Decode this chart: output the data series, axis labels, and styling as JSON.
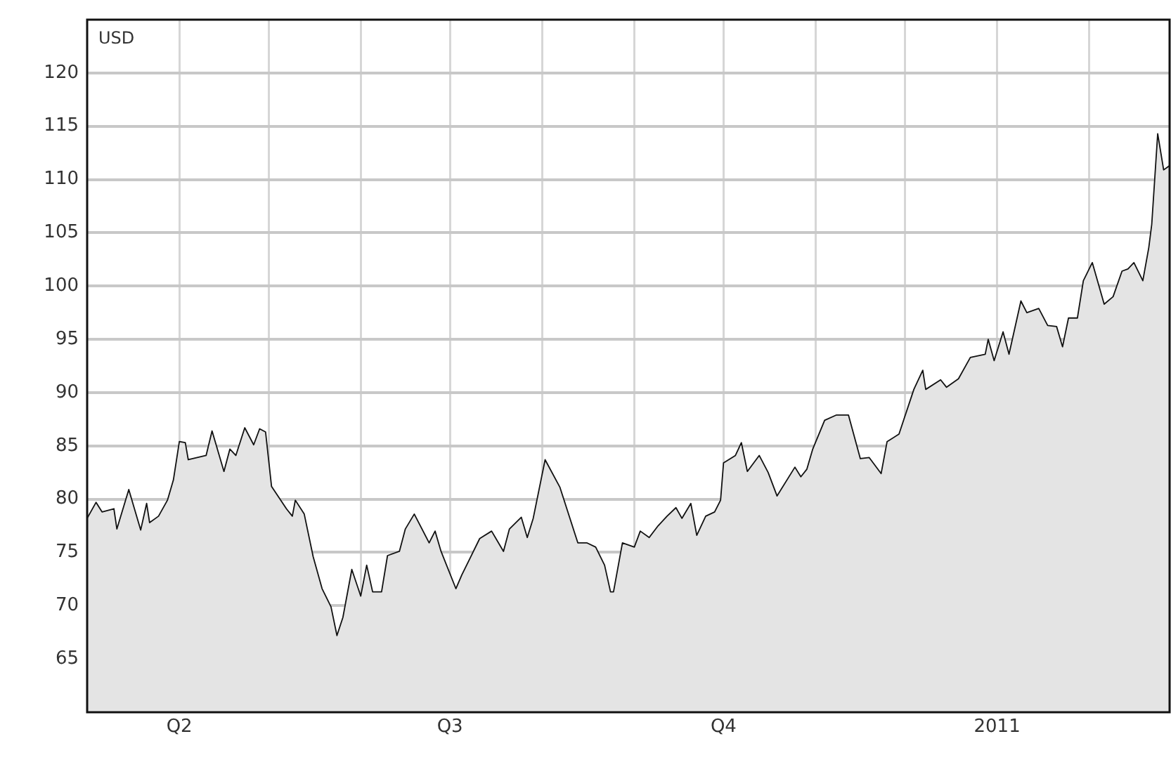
{
  "chart_data": {
    "type": "area",
    "annotations": [
      "USD"
    ],
    "x": [
      "2010-03-01",
      "2010-03-04",
      "2010-03-06",
      "2010-03-10",
      "2010-03-11",
      "2010-03-15",
      "2010-03-19",
      "2010-03-21",
      "2010-03-22",
      "2010-03-25",
      "2010-03-28",
      "2010-03-30",
      "2010-04-01",
      "2010-04-03",
      "2010-04-04",
      "2010-04-10",
      "2010-04-12",
      "2010-04-16",
      "2010-04-18",
      "2010-04-20",
      "2010-04-23",
      "2010-04-26",
      "2010-04-28",
      "2010-04-30",
      "2010-05-02",
      "2010-05-07",
      "2010-05-09",
      "2010-05-10",
      "2010-05-13",
      "2010-05-16",
      "2010-05-19",
      "2010-05-22",
      "2010-05-24",
      "2010-05-26",
      "2010-05-29",
      "2010-06-01",
      "2010-06-03",
      "2010-06-05",
      "2010-06-08",
      "2010-06-10",
      "2010-06-14",
      "2010-06-16",
      "2010-06-19",
      "2010-06-24",
      "2010-06-26",
      "2010-06-28",
      "2010-07-03",
      "2010-07-05",
      "2010-07-08",
      "2010-07-11",
      "2010-07-15",
      "2010-07-19",
      "2010-07-21",
      "2010-07-25",
      "2010-07-27",
      "2010-07-29",
      "2010-08-02",
      "2010-08-07",
      "2010-08-13",
      "2010-08-16",
      "2010-08-19",
      "2010-08-22",
      "2010-08-24",
      "2010-08-25",
      "2010-08-28",
      "2010-09-01",
      "2010-09-03",
      "2010-09-06",
      "2010-09-09",
      "2010-09-12",
      "2010-09-15",
      "2010-09-17",
      "2010-09-20",
      "2010-09-22",
      "2010-09-25",
      "2010-09-28",
      "2010-09-30",
      "2010-10-01",
      "2010-10-05",
      "2010-10-07",
      "2010-10-09",
      "2010-10-13",
      "2010-10-16",
      "2010-10-19",
      "2010-10-25",
      "2010-10-27",
      "2010-10-29",
      "2010-10-31",
      "2010-11-04",
      "2010-11-08",
      "2010-11-12",
      "2010-11-16",
      "2010-11-19",
      "2010-11-23",
      "2010-11-25",
      "2010-11-29",
      "2010-12-04",
      "2010-12-07",
      "2010-12-08",
      "2010-12-13",
      "2010-12-15",
      "2010-12-19",
      "2010-12-23",
      "2010-12-28",
      "2010-12-29",
      "2010-12-31",
      "2011-01-03",
      "2011-01-05",
      "2011-01-09",
      "2011-01-11",
      "2011-01-15",
      "2011-01-18",
      "2011-01-21",
      "2011-01-23",
      "2011-01-25",
      "2011-01-28",
      "2011-01-30",
      "2011-02-02",
      "2011-02-06",
      "2011-02-09",
      "2011-02-12",
      "2011-02-14",
      "2011-02-16",
      "2011-02-19",
      "2011-02-21",
      "2011-02-22",
      "2011-02-24",
      "2011-02-26",
      "2011-02-28"
    ],
    "series": [
      {
        "color": "#111111",
        "values": [
          78.2,
          79.7,
          78.8,
          79.1,
          77.2,
          80.9,
          77.1,
          79.6,
          77.8,
          78.4,
          79.9,
          81.8,
          85.4,
          85.3,
          83.7,
          84.1,
          86.4,
          82.6,
          84.7,
          84.1,
          86.7,
          85.1,
          86.6,
          86.3,
          81.2,
          79.1,
          78.4,
          79.9,
          78.6,
          74.6,
          71.6,
          69.9,
          67.2,
          68.9,
          73.4,
          70.9,
          73.8,
          71.3,
          71.3,
          74.7,
          75.1,
          77.2,
          78.6,
          75.9,
          77.0,
          75.1,
          71.6,
          72.9,
          74.6,
          76.3,
          77.0,
          75.1,
          77.2,
          78.3,
          76.4,
          78.2,
          83.7,
          81.1,
          75.9,
          75.9,
          75.5,
          73.8,
          71.3,
          71.3,
          75.9,
          75.5,
          77.0,
          76.4,
          77.5,
          78.4,
          79.2,
          78.2,
          79.6,
          76.6,
          78.4,
          78.8,
          79.9,
          83.4,
          84.1,
          85.3,
          82.6,
          84.1,
          82.5,
          80.3,
          83.0,
          82.1,
          82.8,
          84.7,
          87.4,
          87.9,
          87.9,
          83.8,
          83.9,
          82.4,
          85.4,
          86.1,
          90.3,
          92.1,
          90.3,
          91.2,
          90.5,
          91.3,
          93.3,
          93.6,
          95.0,
          93.0,
          95.7,
          93.6,
          98.6,
          97.5,
          97.9,
          96.3,
          96.2,
          94.3,
          97.0,
          97.0,
          100.5,
          102.2,
          98.3,
          99.0,
          101.4,
          101.6,
          102.2,
          100.5,
          103.6,
          105.8,
          114.3,
          110.9,
          111.3
        ]
      }
    ],
    "xlim": [
      "2010-03-01",
      "2011-02-28"
    ],
    "xticks": [
      {
        "value": "2010-04-01",
        "label": "Q2"
      },
      {
        "value": "2010-05-01",
        "label": null
      },
      {
        "value": "2010-06-01",
        "label": null
      },
      {
        "value": "2010-07-01",
        "label": "Q3"
      },
      {
        "value": "2010-08-01",
        "label": null
      },
      {
        "value": "2010-09-01",
        "label": null
      },
      {
        "value": "2010-10-01",
        "label": "Q4"
      },
      {
        "value": "2010-11-01",
        "label": null
      },
      {
        "value": "2010-12-01",
        "label": null
      },
      {
        "value": "2011-01-01",
        "label": "2011"
      },
      {
        "value": "2011-02-01",
        "label": null
      }
    ],
    "ylim": [
      60,
      125
    ],
    "yticks": [
      65,
      70,
      75,
      80,
      85,
      90,
      95,
      100,
      105,
      110,
      115,
      120
    ],
    "grid": true,
    "legend": false,
    "marker": "none",
    "line_style": "solid"
  }
}
